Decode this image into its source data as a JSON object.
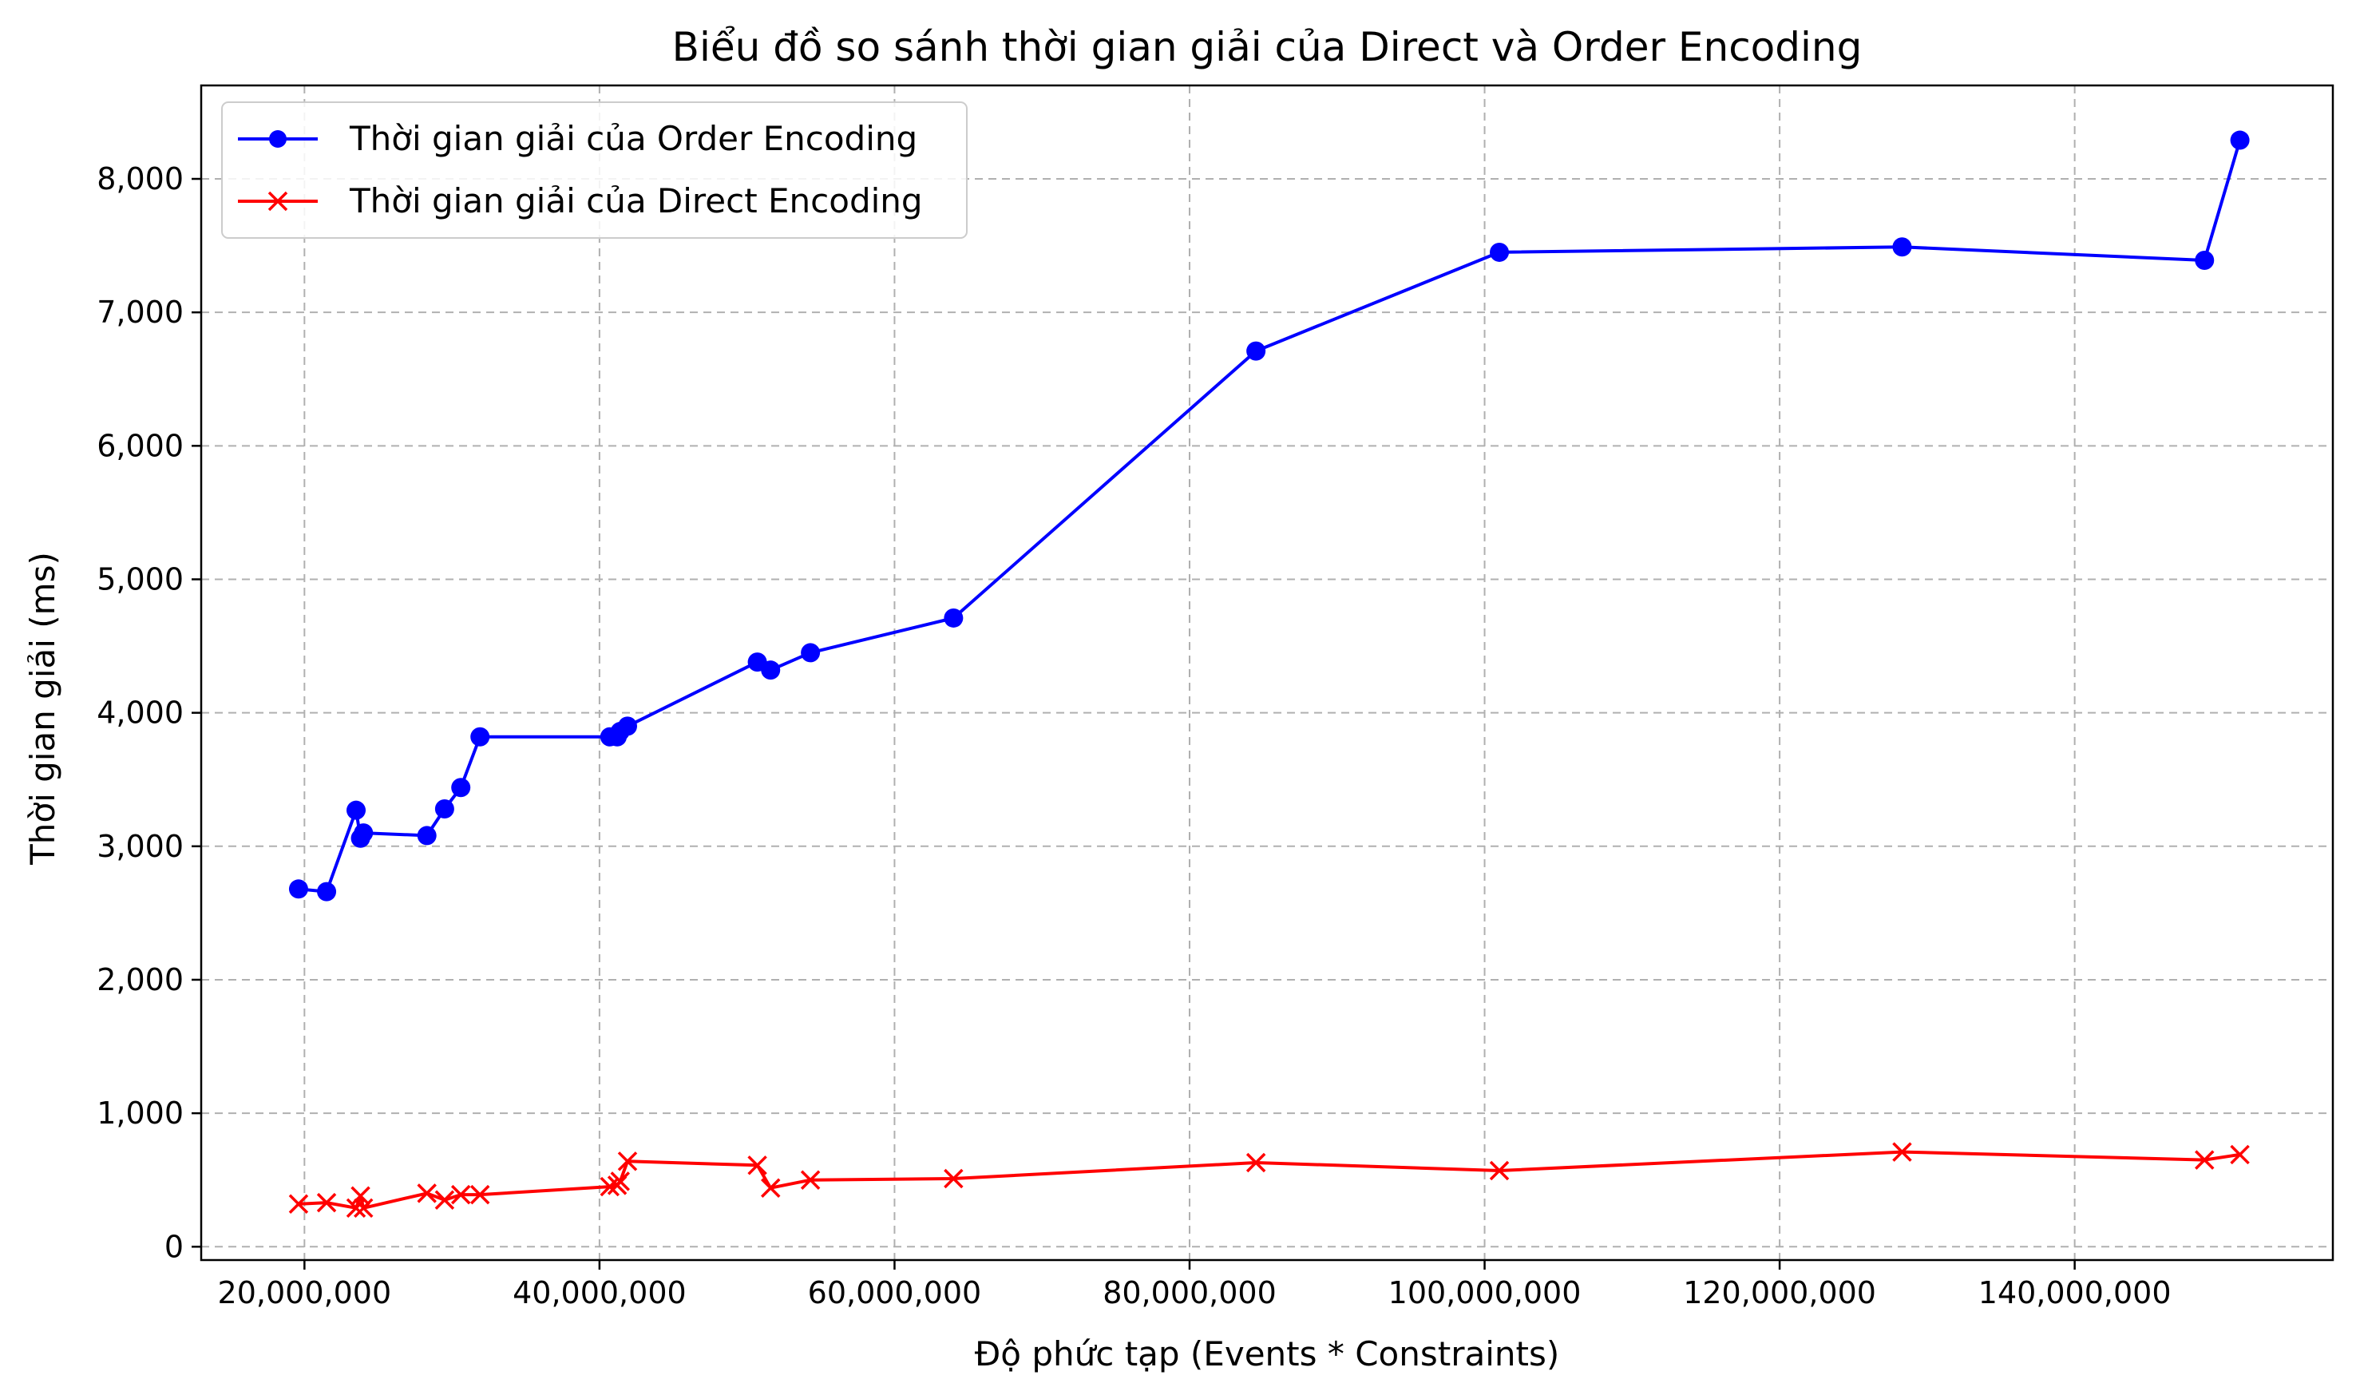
{
  "chart_data": {
    "type": "line",
    "title": "Biểu đồ so sánh thời gian giải của Direct và Order Encoding",
    "xlabel": "Độ phức tạp (Events * Constraints)",
    "ylabel": "Thời gian giải (ms)",
    "xlim": [
      13000000,
      157500000
    ],
    "ylim": [
      -100,
      8700
    ],
    "xticks": [
      20000000,
      40000000,
      60000000,
      80000000,
      100000000,
      120000000,
      140000000
    ],
    "xtick_labels": [
      "20,000,000",
      "40,000,000",
      "60,000,000",
      "80,000,000",
      "100,000,000",
      "120,000,000",
      "140,000,000"
    ],
    "yticks": [
      0,
      1000,
      2000,
      3000,
      4000,
      5000,
      6000,
      7000,
      8000
    ],
    "ytick_labels": [
      "0",
      "1,000",
      "2,000",
      "3,000",
      "4,000",
      "5,000",
      "6,000",
      "7,000",
      "8,000"
    ],
    "grid": true,
    "legend_position": "top-left",
    "series": [
      {
        "name": "Thời gian giải của Order Encoding",
        "color": "#0000ff",
        "marker": "circle",
        "x": [
          19600000,
          21500000,
          23500000,
          23800000,
          24000000,
          28300000,
          29500000,
          30600000,
          31900000,
          40700000,
          41200000,
          41400000,
          41900000,
          50700000,
          51600000,
          54300000,
          64000000,
          84500000,
          101000000,
          128300000,
          148800000,
          151200000
        ],
        "y": [
          2680,
          2660,
          3270,
          3060,
          3100,
          3080,
          3280,
          3440,
          3820,
          3820,
          3820,
          3860,
          3900,
          4380,
          4320,
          4450,
          4710,
          6710,
          7450,
          7490,
          7390,
          8290
        ]
      },
      {
        "name": "Thời gian giải của Direct Encoding",
        "color": "#ff0000",
        "marker": "x",
        "x": [
          19600000,
          21500000,
          23500000,
          23800000,
          24000000,
          28300000,
          29500000,
          30600000,
          31900000,
          40700000,
          41200000,
          41400000,
          41900000,
          50700000,
          51600000,
          54300000,
          64000000,
          84500000,
          101000000,
          128300000,
          148800000,
          151200000
        ],
        "y": [
          320,
          330,
          290,
          380,
          290,
          400,
          350,
          390,
          390,
          450,
          460,
          490,
          640,
          610,
          440,
          500,
          510,
          630,
          570,
          710,
          650,
          690
        ]
      }
    ]
  }
}
